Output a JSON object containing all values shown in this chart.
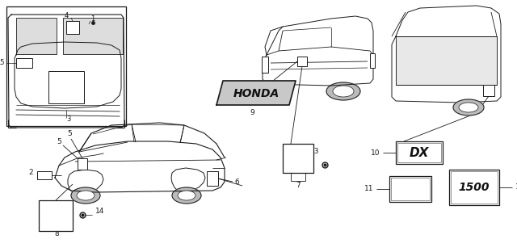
{
  "bg_color": "#ffffff",
  "lc": "#1a1a1a",
  "fig_width": 6.4,
  "fig_height": 3.12,
  "dpi": 100
}
